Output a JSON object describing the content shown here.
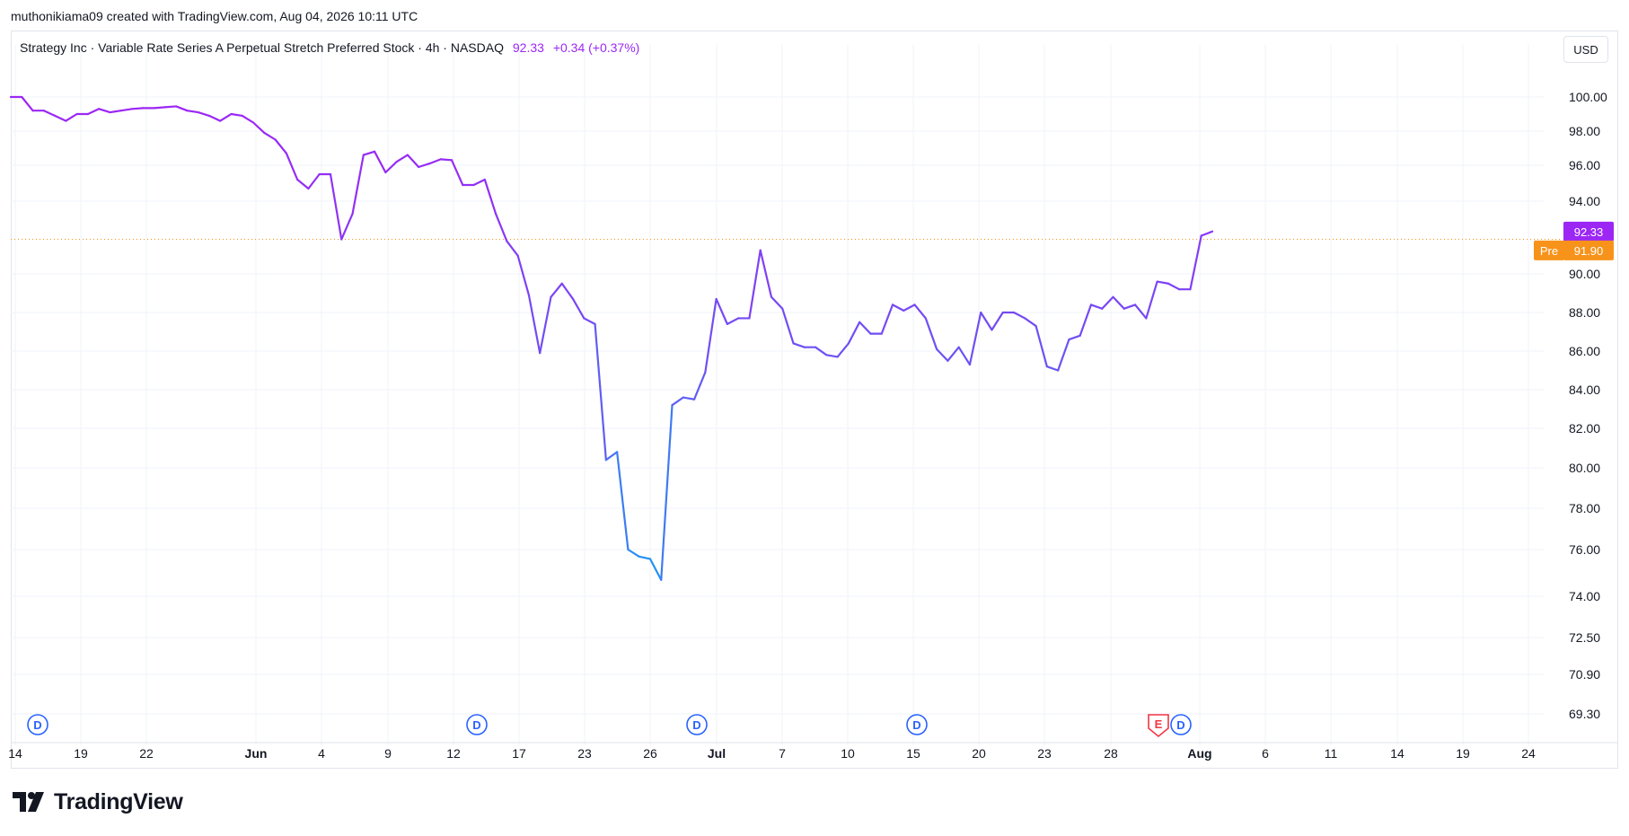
{
  "attribution": "muthonikiama09 created with TradingView.com, Aug 04, 2026 10:11 UTC",
  "legend": {
    "symbol": "Strategy Inc · Variable Rate Series A Perpetual Stretch Preferred Stock · 4h · NASDAQ",
    "price": "92.33",
    "change": "+0.34 (+0.37%)"
  },
  "currency": "USD",
  "brand": "TradingView",
  "colors": {
    "line_purple": "#9c27f5",
    "line_blue": "#2196f3",
    "premarket": "#f7931a",
    "earnings": "#f23645",
    "dividend": "#2962ff",
    "grid": "#f0f3fa"
  },
  "chart_data": {
    "type": "line",
    "y_axis_labels": [
      "100.00",
      "98.00",
      "96.00",
      "94.00",
      "90.00",
      "88.00",
      "86.00",
      "84.00",
      "82.00",
      "80.00",
      "78.00",
      "76.00",
      "74.00",
      "72.50",
      "70.90",
      "69.30"
    ],
    "x_axis_labels": [
      {
        "label": "14",
        "bold": false
      },
      {
        "label": "19",
        "bold": false
      },
      {
        "label": "22",
        "bold": false
      },
      {
        "label": "Jun",
        "bold": true
      },
      {
        "label": "4",
        "bold": false
      },
      {
        "label": "9",
        "bold": false
      },
      {
        "label": "12",
        "bold": false
      },
      {
        "label": "17",
        "bold": false
      },
      {
        "label": "23",
        "bold": false
      },
      {
        "label": "26",
        "bold": false
      },
      {
        "label": "Jul",
        "bold": true
      },
      {
        "label": "7",
        "bold": false
      },
      {
        "label": "10",
        "bold": false
      },
      {
        "label": "15",
        "bold": false
      },
      {
        "label": "20",
        "bold": false
      },
      {
        "label": "23",
        "bold": false
      },
      {
        "label": "28",
        "bold": false
      },
      {
        "label": "Aug",
        "bold": true
      },
      {
        "label": "6",
        "bold": false
      },
      {
        "label": "11",
        "bold": false
      },
      {
        "label": "14",
        "bold": false
      },
      {
        "label": "19",
        "bold": false
      },
      {
        "label": "24",
        "bold": false
      }
    ],
    "series": [
      {
        "values": [
          100.0,
          100.0,
          99.2,
          99.2,
          98.9,
          98.6,
          99.0,
          99.0,
          99.3,
          99.1,
          99.2,
          99.3,
          99.35,
          99.35,
          99.4,
          99.45,
          99.2,
          99.1,
          98.9,
          98.6,
          99.0,
          98.9,
          98.5,
          97.9,
          97.5,
          96.7,
          95.2,
          94.7,
          95.5,
          95.5,
          91.9,
          93.3,
          96.6,
          96.8,
          95.6,
          96.2,
          96.6,
          95.9,
          96.1,
          96.35,
          96.3,
          94.9,
          94.9,
          95.2,
          93.3,
          91.8,
          91.0,
          88.9,
          85.9,
          88.8,
          89.5,
          88.7,
          87.7,
          87.4,
          80.4,
          80.8,
          76.0,
          75.7,
          75.6,
          74.7,
          83.2,
          83.6,
          83.5,
          84.9,
          88.7,
          87.4,
          87.7,
          87.7,
          91.3,
          88.8,
          88.2,
          86.4,
          86.2,
          86.2,
          85.8,
          85.7,
          86.4,
          87.5,
          86.9,
          86.9,
          88.4,
          88.1,
          88.4,
          87.7,
          86.1,
          85.5,
          86.2,
          85.3,
          88.0,
          87.1,
          88.0,
          88.0,
          87.7,
          87.3,
          85.2,
          85.0,
          86.6,
          86.8,
          88.4,
          88.2,
          88.8,
          88.2,
          88.4,
          87.7,
          89.6,
          89.5,
          89.2,
          89.2,
          92.1,
          92.33
        ]
      }
    ],
    "price_tags": [
      {
        "label": "92.33",
        "type": "last"
      },
      {
        "label": "Pre",
        "value_label": "91.90",
        "type": "premarket"
      }
    ],
    "events": [
      "D",
      "D",
      "D",
      "D",
      "E",
      "D"
    ],
    "grid": true
  }
}
